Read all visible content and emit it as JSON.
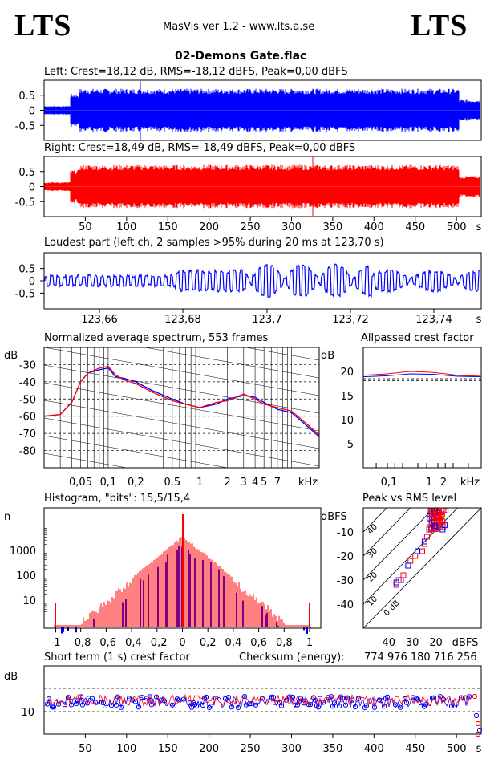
{
  "header": {
    "logo_left": "LTS",
    "logo_right": "LTS",
    "app_title": "MasVis ver 1.2 - www.lts.a.se",
    "file_name": "02-Demons Gate.flac"
  },
  "colors": {
    "left": "#0000ff",
    "right": "#ff0000",
    "grid": "#000000"
  },
  "chart_data": [
    {
      "id": "waveform-left",
      "type": "area",
      "title": "Left: Crest=18,12 dB, RMS=-18,12 dBFS, Peak=0,00 dBFS",
      "yticks": [
        "0.5",
        "0",
        "-0.5"
      ],
      "ylim": [
        -1,
        1
      ],
      "duration_s": 530,
      "series": [
        {
          "name": "Left",
          "color": "#0000ff"
        }
      ]
    },
    {
      "id": "waveform-right",
      "type": "area",
      "title": "Right: Crest=18,49 dB, RMS=-18,49 dBFS, Peak=0,00 dBFS",
      "yticks": [
        "0.5",
        "0",
        "-0.5"
      ],
      "ylim": [
        -1,
        1
      ],
      "xticks": [
        "50",
        "100",
        "150",
        "200",
        "250",
        "300",
        "350",
        "400",
        "450",
        "500"
      ],
      "xunit": "s",
      "series": [
        {
          "name": "Right",
          "color": "#ff0000"
        }
      ]
    },
    {
      "id": "loudest-part",
      "type": "line",
      "title": "Loudest part (left  ch, 2 samples >95% during 20 ms at 123,70 s)",
      "yticks": [
        "0.5",
        "0",
        "-0.5"
      ],
      "ylim": [
        -1,
        1
      ],
      "xticks": [
        "123,66",
        "123,68",
        "123,7",
        "123,72",
        "123,74"
      ],
      "xunit": "s"
    },
    {
      "id": "avg-spectrum",
      "type": "line",
      "title": "Normalized average spectrum, 553 frames",
      "ylabel": "dB",
      "yticks": [
        "-30",
        "-40",
        "-50",
        "-60",
        "-70",
        "-80"
      ],
      "ylim": [
        -90,
        -20
      ],
      "xticks": [
        "0,05",
        "0,1",
        "0,2",
        "0,5",
        "1",
        "2",
        "3",
        "4",
        "5",
        "7"
      ],
      "xunit": "kHz",
      "series": [
        {
          "name": "Left",
          "color": "#0000ff",
          "x": [
            0.02,
            0.03,
            0.04,
            0.05,
            0.06,
            0.08,
            0.1,
            0.12,
            0.15,
            0.2,
            0.3,
            0.5,
            0.7,
            1,
            1.5,
            2,
            3,
            4,
            5,
            7,
            10,
            15,
            20
          ],
          "y": [
            -60,
            -59,
            -52,
            -40,
            -35,
            -33,
            -32,
            -37,
            -38,
            -40,
            -45,
            -50,
            -53,
            -55,
            -53,
            -50,
            -48,
            -49,
            -52,
            -56,
            -58,
            -66,
            -72
          ]
        },
        {
          "name": "Right",
          "color": "#ff0000",
          "x": [
            0.02,
            0.03,
            0.04,
            0.05,
            0.06,
            0.08,
            0.1,
            0.12,
            0.15,
            0.2,
            0.3,
            0.5,
            0.7,
            1,
            1.5,
            2,
            3,
            4,
            5,
            7,
            10,
            15,
            20
          ],
          "y": [
            -60,
            -59,
            -52,
            -40,
            -35,
            -32,
            -31,
            -36,
            -39,
            -41,
            -46,
            -51,
            -53,
            -55,
            -52,
            -51,
            -47,
            -50,
            -53,
            -55,
            -57,
            -65,
            -71
          ]
        }
      ]
    },
    {
      "id": "allpassed-crest",
      "type": "line",
      "title": "Allpassed crest factor",
      "ylabel": "dB",
      "yticks": [
        "20",
        "15",
        "10",
        "5"
      ],
      "ylim": [
        0,
        25
      ],
      "xticks": [
        "0,1",
        "1",
        "2"
      ],
      "xunit": "kHz",
      "series": [
        {
          "name": "Left",
          "color": "#0000ff",
          "values": [
            18.9,
            19.1,
            19.5,
            19.4,
            19.0,
            18.9
          ]
        },
        {
          "name": "Right",
          "color": "#ff0000",
          "values": [
            19.2,
            19.5,
            20.0,
            19.8,
            19.2,
            19.0
          ]
        }
      ],
      "reference_lines": [
        18.1,
        18.5
      ]
    },
    {
      "id": "histogram",
      "type": "line",
      "title": "Histogram, \"bits\": 15,5/15,4",
      "ylabel": "n",
      "yticks": [
        "1000",
        "100",
        "10"
      ],
      "yscale": "log",
      "xticks": [
        "-1",
        "-0,8",
        "-0,6",
        "-0,4",
        "-0,2",
        "0",
        "0,2",
        "0,4",
        "0,6",
        "0,8",
        "1"
      ]
    },
    {
      "id": "peak-vs-rms",
      "type": "scatter",
      "title": "Peak vs RMS level",
      "ylabel": "dBFS",
      "xunit": "dBFS",
      "yticks": [
        "-10",
        "-20",
        "-30",
        "-40"
      ],
      "xticks": [
        "-40",
        "-30",
        "-20"
      ],
      "diagonal_labels": [
        "40",
        "30",
        "20",
        "10",
        "0 dB"
      ],
      "series": [
        {
          "name": "Right",
          "color": "#ff0000",
          "x": [
            -20,
            -19,
            -18,
            -17,
            -21,
            -22,
            -23,
            -24,
            -25,
            -28,
            -30,
            -33,
            -35,
            -36,
            -19,
            -18,
            -20,
            -22,
            -17,
            -16
          ],
          "y": [
            -2,
            -3,
            -5,
            -4,
            -6,
            -8,
            -12,
            -15,
            -18,
            -20,
            -22,
            -28,
            -30,
            -32,
            -4,
            -2,
            -5,
            -10,
            -3,
            -1
          ]
        },
        {
          "name": "Left",
          "color": "#0000ff",
          "x": [
            -21,
            -20,
            -22,
            -24,
            -27,
            -31,
            -34,
            -36,
            -18,
            -19
          ],
          "y": [
            -5,
            -6,
            -9,
            -14,
            -18,
            -24,
            -30,
            -31,
            -3,
            -4
          ]
        }
      ]
    },
    {
      "id": "short-term-crest",
      "type": "scatter",
      "title": "Short term (1 s) crest factor",
      "checksum_label": "Checksum (energy):",
      "checksum_value": "774 976 180 716 256",
      "ylabel": "dB",
      "yticks": [
        "10"
      ],
      "xticks": [
        "50",
        "100",
        "150",
        "200",
        "250",
        "300",
        "350",
        "400",
        "450",
        "500"
      ],
      "xunit": "s",
      "series": [
        {
          "name": "Left",
          "color": "#0000ff"
        },
        {
          "name": "Right",
          "color": "#ff0000"
        }
      ]
    }
  ]
}
